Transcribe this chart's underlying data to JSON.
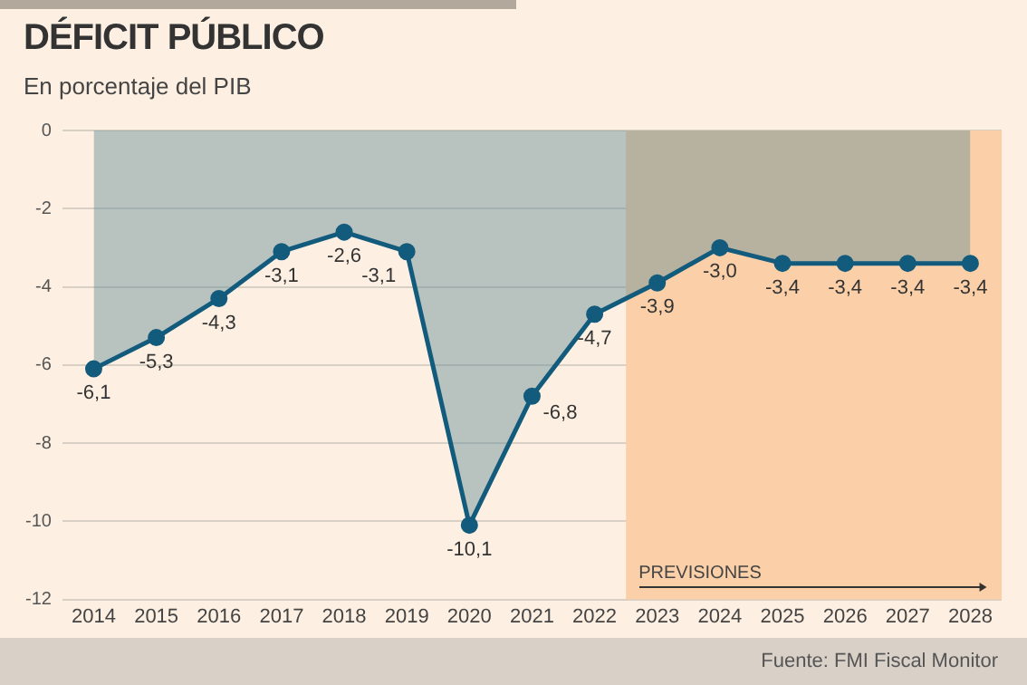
{
  "chart_data": {
    "type": "area",
    "title": "DÉFICIT PÚBLICO",
    "subtitle": "En porcentaje del PIB",
    "categories": [
      "2014",
      "2015",
      "2016",
      "2017",
      "2018",
      "2019",
      "2020",
      "2021",
      "2022",
      "2023",
      "2024",
      "2025",
      "2026",
      "2027",
      "2028"
    ],
    "series": [
      {
        "color": "#125b7c",
        "values": [
          -6.1,
          -5.3,
          -4.3,
          -3.1,
          -2.6,
          -3.1,
          -10.1,
          -6.8,
          -4.7,
          -3.9,
          -3.0,
          -3.4,
          -3.4,
          -3.4,
          -3.4
        ],
        "value_labels": [
          "-6,1",
          "-5,3",
          "-4,3",
          "-3,1",
          "-2,6",
          "-3,1",
          "-10,1",
          "-6,8",
          "-4,7",
          "-3,9",
          "-3,0",
          "-3,4",
          "-3,4",
          "-3,4",
          "-3,4"
        ]
      }
    ],
    "ylim": [
      -12,
      0
    ],
    "yticks": [
      0,
      -2,
      -4,
      -6,
      -8,
      -10,
      -12
    ],
    "grid": "y",
    "marker": "circle",
    "legend": false,
    "bands": [
      {
        "axis": "x",
        "from": "2023",
        "to": "2028",
        "label": "PREVISIONES",
        "color": "#fbd0a8"
      }
    ],
    "annotations": [
      "Fuente: FMI Fiscal Monitor"
    ]
  }
}
